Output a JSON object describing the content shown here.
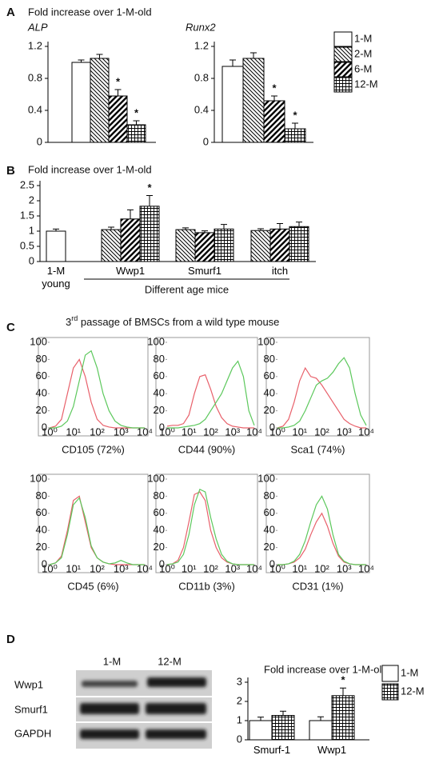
{
  "panel_labels": [
    "A",
    "B",
    "C",
    "D"
  ],
  "c_title": [
    "3",
    "rd",
    " passage of BMSCs from a wild type mouse"
  ],
  "blot": {
    "lanes": [
      "1-M",
      "12-M"
    ],
    "rows": [
      "Wwp1",
      "Smurf1",
      "GAPDH"
    ]
  },
  "chart_data": [
    {
      "type": "bar",
      "title": "Fold increase over 1-M-old",
      "subtitle": "ALP",
      "categories": [
        null
      ],
      "ylim": [
        0,
        1.2
      ],
      "yticks": [
        0,
        0.4,
        0.8,
        1.2
      ],
      "series": [
        {
          "pattern": "blank",
          "values": [
            1.0
          ],
          "errors": [
            0.03
          ]
        },
        {
          "pattern": "diag-left",
          "values": [
            1.05
          ],
          "errors": [
            0.05
          ]
        },
        {
          "pattern": "diag-bold",
          "values": [
            0.58
          ],
          "errors": [
            0.08
          ],
          "annotations": [
            "*"
          ]
        },
        {
          "pattern": "grid",
          "values": [
            0.22
          ],
          "errors": [
            0.05
          ],
          "annotations": [
            "*"
          ]
        }
      ]
    },
    {
      "type": "bar",
      "subtitle": "Runx2",
      "categories": [
        null
      ],
      "ylim": [
        0,
        1.2
      ],
      "yticks": [
        0,
        0.4,
        0.8,
        1.2
      ],
      "series": [
        {
          "name": "1-M",
          "pattern": "blank",
          "values": [
            0.95
          ],
          "errors": [
            0.08
          ]
        },
        {
          "name": "2-M",
          "pattern": "diag-left",
          "values": [
            1.05
          ],
          "errors": [
            0.07
          ]
        },
        {
          "name": "6-M",
          "pattern": "diag-bold",
          "values": [
            0.52
          ],
          "errors": [
            0.06
          ],
          "annotations": [
            "*"
          ]
        },
        {
          "name": "12-M",
          "pattern": "grid",
          "values": [
            0.17
          ],
          "errors": [
            0.07
          ],
          "annotations": [
            "*"
          ]
        }
      ]
    },
    {
      "type": "bar",
      "title": "Fold increase over 1-M-old",
      "xlabel": "Different age mice",
      "categories": [
        "1-M\nyoung",
        "Wwp1",
        "Smurf1",
        "itch"
      ],
      "ylim": [
        0,
        2.5
      ],
      "yticks": [
        0,
        0.5,
        1,
        1.5,
        2,
        2.5
      ],
      "series": [
        {
          "pattern": "blank",
          "values": [
            1.0,
            null,
            null,
            null
          ],
          "errors": [
            0.07,
            null,
            null,
            null
          ]
        },
        {
          "pattern": "diag-left",
          "values": [
            null,
            1.05,
            1.05,
            1.02
          ],
          "errors": [
            null,
            0.08,
            0.06,
            0.06
          ]
        },
        {
          "pattern": "diag-bold",
          "values": [
            null,
            1.4,
            0.95,
            1.07
          ],
          "errors": [
            null,
            0.3,
            0.06,
            0.18
          ]
        },
        {
          "pattern": "grid",
          "values": [
            null,
            1.82,
            1.07,
            1.15
          ],
          "errors": [
            null,
            0.35,
            0.15,
            0.15
          ],
          "annotations": [
            null,
            "*",
            null,
            null
          ]
        }
      ]
    },
    {
      "type": "line",
      "xlabel": "CD105 (72%)",
      "xscale": "log",
      "x": [
        1,
        1.78,
        3.16,
        5.62,
        10,
        17.8,
        31.6,
        56.2,
        100,
        178,
        316,
        562,
        1000,
        1778,
        3162,
        5623,
        10000
      ],
      "xlim": [
        1,
        10000
      ],
      "xticks": [
        {
          "value": 1,
          "label": "10⁰"
        },
        {
          "value": 10,
          "label": "10¹"
        },
        {
          "value": 100,
          "label": "10²"
        },
        {
          "value": 1000,
          "label": "10³"
        },
        {
          "value": 10000,
          "label": "10⁴"
        }
      ],
      "ylim": [
        0,
        100
      ],
      "yticks": [
        0,
        20,
        40,
        60,
        80,
        100
      ],
      "series": [
        {
          "color": "#e8606a",
          "values": [
            0,
            2,
            10,
            40,
            70,
            80,
            60,
            30,
            10,
            3,
            1,
            0,
            0,
            0,
            0,
            0,
            0
          ]
        },
        {
          "color": "#5cc85c",
          "values": [
            0,
            0,
            2,
            8,
            25,
            55,
            85,
            90,
            70,
            40,
            20,
            8,
            3,
            1,
            0,
            0,
            0
          ]
        }
      ]
    },
    {
      "type": "line",
      "xlabel": "CD44 (90%)",
      "xscale": "log",
      "x": [
        1,
        1.78,
        3.16,
        5.62,
        10,
        17.8,
        31.6,
        56.2,
        100,
        178,
        316,
        562,
        1000,
        1778,
        3162,
        5623,
        10000
      ],
      "xlim": [
        1,
        10000
      ],
      "xticks": [
        {
          "value": 1,
          "label": "10⁰"
        },
        {
          "value": 10,
          "label": "10¹"
        },
        {
          "value": 100,
          "label": "10²"
        },
        {
          "value": 1000,
          "label": "10³"
        },
        {
          "value": 10000,
          "label": "10⁴"
        }
      ],
      "ylim": [
        0,
        100
      ],
      "yticks": [
        0,
        20,
        40,
        60,
        80,
        100
      ],
      "series": [
        {
          "color": "#e8606a",
          "values": [
            2,
            3,
            3,
            5,
            15,
            40,
            60,
            62,
            45,
            25,
            12,
            5,
            2,
            1,
            0,
            0,
            0
          ]
        },
        {
          "color": "#5cc85c",
          "values": [
            0,
            0,
            0,
            1,
            2,
            3,
            5,
            10,
            20,
            30,
            40,
            55,
            70,
            78,
            60,
            20,
            3
          ]
        }
      ]
    },
    {
      "type": "line",
      "xlabel": "Sca1 (74%)",
      "xscale": "log",
      "x": [
        1,
        1.78,
        3.16,
        5.62,
        10,
        17.8,
        31.6,
        56.2,
        100,
        178,
        316,
        562,
        1000,
        1778,
        3162,
        5623,
        10000
      ],
      "xlim": [
        1,
        10000
      ],
      "xticks": [
        {
          "value": 1,
          "label": "10⁰"
        },
        {
          "value": 10,
          "label": "10¹"
        },
        {
          "value": 100,
          "label": "10²"
        },
        {
          "value": 1000,
          "label": "10³"
        },
        {
          "value": 10000,
          "label": "10⁴"
        }
      ],
      "ylim": [
        0,
        100
      ],
      "yticks": [
        0,
        20,
        40,
        60,
        80,
        100
      ],
      "series": [
        {
          "color": "#e8606a",
          "values": [
            0,
            2,
            10,
            30,
            55,
            70,
            60,
            58,
            50,
            40,
            30,
            20,
            10,
            5,
            2,
            0,
            0
          ]
        },
        {
          "color": "#5cc85c",
          "values": [
            0,
            0,
            1,
            3,
            8,
            20,
            35,
            50,
            55,
            58,
            65,
            75,
            82,
            70,
            40,
            15,
            3
          ]
        }
      ]
    },
    {
      "type": "line",
      "xlabel": "CD45 (6%)",
      "xscale": "log",
      "x": [
        1,
        1.78,
        3.16,
        5.62,
        10,
        17.8,
        31.6,
        56.2,
        100,
        178,
        316,
        562,
        1000,
        1778,
        3162,
        5623,
        10000
      ],
      "xlim": [
        1,
        10000
      ],
      "xticks": [
        {
          "value": 1,
          "label": "10⁰"
        },
        {
          "value": 10,
          "label": "10¹"
        },
        {
          "value": 100,
          "label": "10²"
        },
        {
          "value": 1000,
          "label": "10³"
        },
        {
          "value": 10000,
          "label": "10⁴"
        }
      ],
      "ylim": [
        0,
        100
      ],
      "yticks": [
        0,
        20,
        40,
        60,
        80,
        100
      ],
      "series": [
        {
          "color": "#e8606a",
          "values": [
            0,
            2,
            10,
            40,
            75,
            80,
            50,
            20,
            8,
            3,
            1,
            0,
            0,
            0,
            0,
            0,
            0
          ]
        },
        {
          "color": "#5cc85c",
          "values": [
            0,
            2,
            8,
            35,
            70,
            78,
            55,
            22,
            8,
            3,
            1,
            2,
            5,
            2,
            0,
            0,
            0
          ]
        }
      ]
    },
    {
      "type": "line",
      "xlabel": "CD11b (3%)",
      "xscale": "log",
      "x": [
        1,
        1.78,
        3.16,
        5.62,
        10,
        17.8,
        31.6,
        56.2,
        100,
        178,
        316,
        562,
        1000,
        1778,
        3162,
        5623,
        10000
      ],
      "xlim": [
        1,
        10000
      ],
      "xticks": [
        {
          "value": 1,
          "label": "10⁰"
        },
        {
          "value": 10,
          "label": "10¹"
        },
        {
          "value": 100,
          "label": "10²"
        },
        {
          "value": 1000,
          "label": "10³"
        },
        {
          "value": 10000,
          "label": "10⁴"
        }
      ],
      "ylim": [
        0,
        100
      ],
      "yticks": [
        0,
        20,
        40,
        60,
        80,
        100
      ],
      "series": [
        {
          "color": "#e8606a",
          "values": [
            0,
            1,
            5,
            20,
            50,
            82,
            85,
            75,
            40,
            20,
            8,
            3,
            1,
            0,
            0,
            0,
            0
          ]
        },
        {
          "color": "#5cc85c",
          "values": [
            0,
            1,
            3,
            12,
            35,
            70,
            88,
            85,
            55,
            30,
            12,
            4,
            1,
            0,
            0,
            0,
            0
          ]
        }
      ]
    },
    {
      "type": "line",
      "xlabel": "CD31 (1%)",
      "xscale": "log",
      "x": [
        1,
        1.78,
        3.16,
        5.62,
        10,
        17.8,
        31.6,
        56.2,
        100,
        178,
        316,
        562,
        1000,
        1778,
        3162,
        5623,
        10000
      ],
      "xlim": [
        1,
        10000
      ],
      "xticks": [
        {
          "value": 1,
          "label": "10⁰"
        },
        {
          "value": 10,
          "label": "10¹"
        },
        {
          "value": 100,
          "label": "10²"
        },
        {
          "value": 1000,
          "label": "10³"
        },
        {
          "value": 10000,
          "label": "10⁴"
        }
      ],
      "ylim": [
        0,
        100
      ],
      "yticks": [
        0,
        20,
        40,
        60,
        80,
        100
      ],
      "series": [
        {
          "color": "#e8606a",
          "values": [
            0,
            0,
            1,
            3,
            8,
            18,
            35,
            50,
            60,
            45,
            25,
            10,
            3,
            1,
            0,
            0,
            0
          ]
        },
        {
          "color": "#5cc85c",
          "values": [
            0,
            0,
            1,
            4,
            12,
            28,
            50,
            70,
            80,
            65,
            35,
            12,
            4,
            1,
            0,
            0,
            0
          ]
        }
      ]
    },
    {
      "type": "bar",
      "title": "Fold increase over 1-M-old",
      "categories": [
        "Smurf-1",
        "Wwp1"
      ],
      "ylim": [
        0,
        3
      ],
      "yticks": [
        0,
        1,
        2,
        3
      ],
      "series": [
        {
          "name": "1-M",
          "pattern": "blank",
          "values": [
            1.0,
            1.0
          ],
          "errors": [
            0.18,
            0.2
          ]
        },
        {
          "name": "12-M",
          "pattern": "grid",
          "values": [
            1.27,
            2.3
          ],
          "errors": [
            0.22,
            0.4
          ],
          "annotations": [
            null,
            "*"
          ]
        }
      ]
    }
  ]
}
